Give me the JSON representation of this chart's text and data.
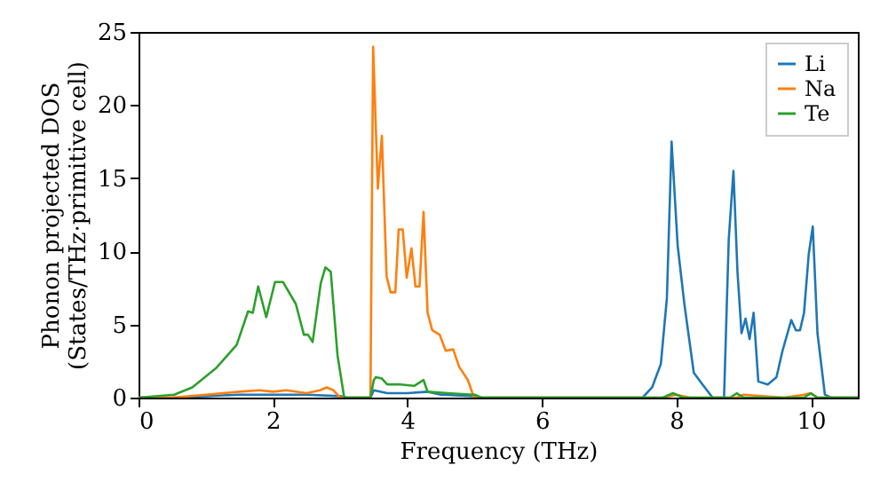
{
  "chart_data": {
    "type": "line",
    "xlabel": "Frequency (THz)",
    "ylabel": "Phonon projected DOS\n(States/THz·primitive cell)",
    "xlim": [
      0,
      10.7
    ],
    "xticks": [
      0,
      2,
      4,
      6,
      8,
      10
    ],
    "ylim": [
      0,
      25
    ],
    "yticks": [
      0,
      5,
      10,
      15,
      20,
      25
    ],
    "grid": false,
    "legend": "top right",
    "marker": "none",
    "line_style": "solid",
    "series": [
      {
        "name": "Li",
        "color": "#1f77b4",
        "x": [
          0,
          0.5,
          1.0,
          1.5,
          2.0,
          2.5,
          3.0,
          3.1,
          3.45,
          3.5,
          3.7,
          4.0,
          4.3,
          4.5,
          5.0,
          5.1,
          7.5,
          7.64,
          7.77,
          7.86,
          7.93,
          8.02,
          8.12,
          8.26,
          8.39,
          8.54,
          8.71,
          8.78,
          8.85,
          8.91,
          8.97,
          9.03,
          9.09,
          9.15,
          9.22,
          9.36,
          9.49,
          9.58,
          9.71,
          9.78,
          9.84,
          9.9,
          9.97,
          10.03,
          10.1,
          10.21,
          10.3,
          10.7
        ],
        "values": [
          0,
          0,
          0.1,
          0.2,
          0.2,
          0.2,
          0.1,
          0,
          0,
          0.5,
          0.3,
          0.3,
          0.4,
          0.2,
          0.1,
          0,
          0,
          0.7,
          2.3,
          6.8,
          17.5,
          10.4,
          6.4,
          1.7,
          0.9,
          0,
          0,
          10.8,
          15.5,
          8.6,
          4.4,
          5.4,
          4.0,
          5.8,
          1.1,
          0.9,
          1.4,
          3.2,
          5.3,
          4.6,
          4.6,
          5.8,
          9.8,
          11.7,
          4.4,
          0.2,
          0,
          0
        ]
      },
      {
        "name": "Na",
        "color": "#ff7f0e",
        "x": [
          0,
          0.5,
          1.0,
          1.5,
          1.8,
          2.0,
          2.2,
          2.5,
          2.7,
          2.8,
          2.9,
          3.0,
          3.45,
          3.49,
          3.56,
          3.62,
          3.69,
          3.75,
          3.82,
          3.87,
          3.93,
          3.99,
          4.06,
          4.12,
          4.18,
          4.24,
          4.3,
          4.37,
          4.48,
          4.57,
          4.68,
          4.77,
          4.9,
          4.99,
          7.8,
          8.0,
          8.2,
          8.9,
          9.0,
          9.6,
          9.9,
          10.0,
          10.1,
          10.7
        ],
        "values": [
          0,
          0,
          0.2,
          0.4,
          0.5,
          0.4,
          0.5,
          0.3,
          0.5,
          0.7,
          0.5,
          0,
          0,
          24.0,
          14.3,
          17.9,
          8.3,
          7.2,
          7.2,
          11.5,
          11.5,
          8.2,
          10.2,
          7.6,
          7.6,
          12.7,
          5.8,
          4.6,
          4.3,
          3.2,
          3.3,
          2.1,
          1.2,
          0,
          0,
          0.2,
          0,
          0,
          0.2,
          0,
          0.2,
          0.3,
          0,
          0
        ]
      },
      {
        "name": "Te",
        "color": "#2ca02c",
        "x": [
          0,
          0.53,
          0.8,
          1.15,
          1.46,
          1.63,
          1.7,
          1.78,
          1.9,
          2.03,
          2.15,
          2.34,
          2.46,
          2.52,
          2.59,
          2.71,
          2.78,
          2.86,
          2.96,
          3.06,
          3.45,
          3.5,
          3.53,
          3.62,
          3.7,
          3.9,
          4.1,
          4.24,
          4.3,
          4.6,
          5.0,
          5.1,
          7.8,
          7.95,
          8.1,
          8.8,
          8.9,
          9.0,
          9.9,
          10.0,
          10.1,
          10.7
        ],
        "values": [
          0,
          0.2,
          0.7,
          2.0,
          3.6,
          5.9,
          5.8,
          7.6,
          5.5,
          7.9,
          7.9,
          6.4,
          4.3,
          4.3,
          3.8,
          7.8,
          8.9,
          8.6,
          2.9,
          0,
          0,
          1.2,
          1.4,
          1.3,
          0.9,
          0.9,
          0.8,
          1.2,
          0.4,
          0.3,
          0.2,
          0,
          0,
          0.3,
          0,
          0,
          0.3,
          0,
          0,
          0.3,
          0,
          0
        ]
      }
    ]
  }
}
